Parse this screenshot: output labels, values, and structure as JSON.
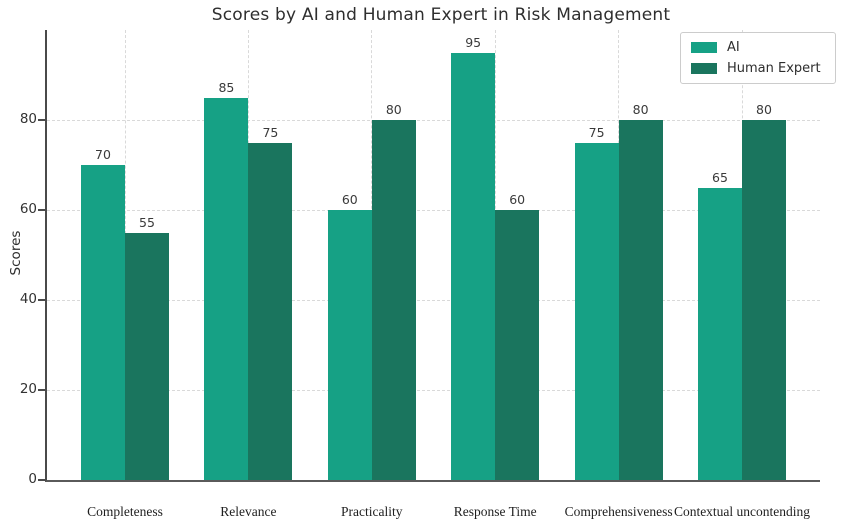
{
  "chart_data": {
    "type": "bar",
    "title": "Scores by AI and Human Expert in Risk Management",
    "xlabel": "",
    "ylabel": "Scores",
    "categories": [
      "Completeness",
      "Relevance",
      "Practicality",
      "Response Time",
      "Comprehensiveness",
      "Contextual uncontending"
    ],
    "series": [
      {
        "name": "AI",
        "color": "#16a185",
        "values": [
          70,
          85,
          60,
          95,
          75,
          65
        ]
      },
      {
        "name": "Human Expert",
        "color": "#1a755e",
        "values": [
          55,
          75,
          80,
          60,
          80,
          80
        ]
      }
    ],
    "ylim": [
      0,
      100
    ],
    "yticks": [
      0,
      20,
      40,
      60,
      80
    ],
    "grid": true,
    "grid_style": "dashed",
    "bar_value_labels": true,
    "legend_position": "upper right",
    "colors": {
      "axis": "#4a4a4a",
      "grid": "#d9d9d9",
      "text": "#2e2e2e"
    }
  }
}
